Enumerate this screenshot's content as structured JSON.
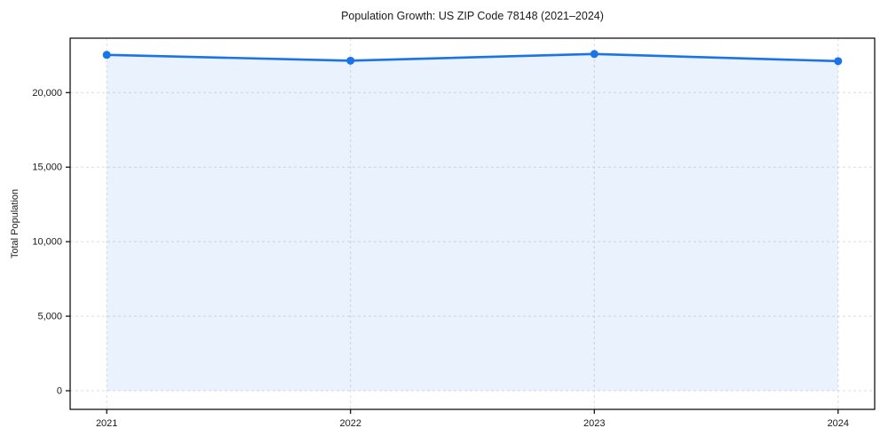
{
  "figure": {
    "background": "#ffffff"
  },
  "chart_data": {
    "type": "area",
    "title": "Population Growth: US ZIP Code 78148 (2021–2024)",
    "xlabel": "",
    "ylabel": "Total Population",
    "x": [
      2021,
      2022,
      2023,
      2024
    ],
    "x_tick_labels": [
      "2021",
      "2022",
      "2023",
      "2024"
    ],
    "series": [
      {
        "name": "Total Population",
        "values": [
          22530,
          22140,
          22590,
          22110
        ]
      }
    ],
    "yticks": [
      0,
      5000,
      10000,
      15000,
      20000
    ],
    "ytick_labels": [
      "0",
      "5,000",
      "10,000",
      "15,000",
      "20,000"
    ],
    "axes": {
      "xlim": [
        2020.85,
        2024.15
      ],
      "ylim": [
        -1250,
        23650
      ],
      "grid": true,
      "grid_style": "dashed",
      "legend": "none"
    },
    "style": {
      "line_color": "#1a73e8",
      "marker_color": "#1a73e8",
      "fill_color": "rgba(26,115,232,0.09)",
      "grid_color": "#dcdcdc",
      "spine_color": "#000000",
      "text_color": "#1a1a1a"
    }
  }
}
